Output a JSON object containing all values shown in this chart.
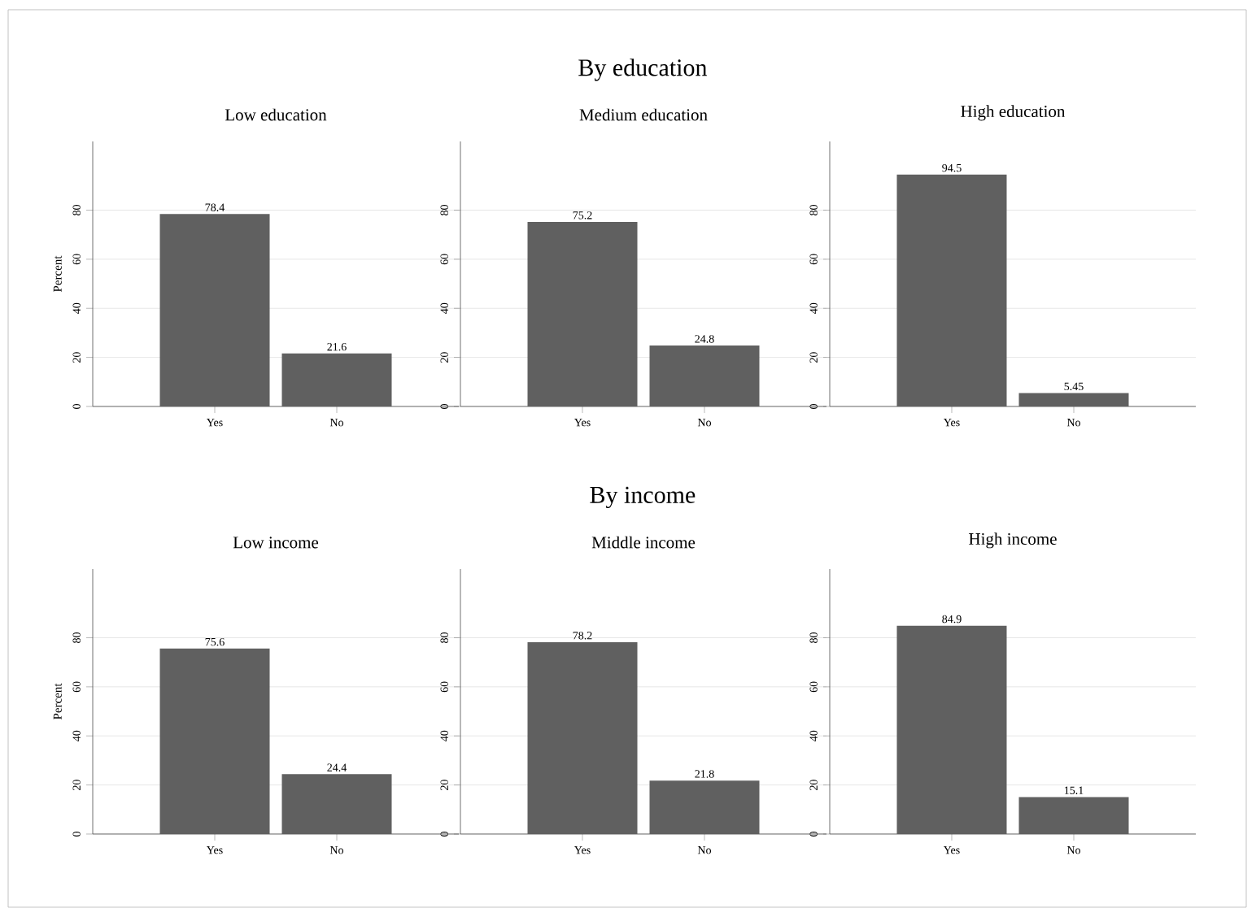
{
  "chart_data": [
    {
      "type": "bar",
      "title": "Low education",
      "ylabel": "Percent",
      "categories": [
        "Yes",
        "No"
      ],
      "values": [
        78.4,
        21.6
      ],
      "color": "#606060",
      "ylim": [
        0,
        108
      ],
      "yticks": [
        0,
        20,
        40,
        60,
        80
      ],
      "grid": "y",
      "data_labels": true,
      "annotations": [
        "By education"
      ]
    },
    {
      "type": "bar",
      "title": "Medium education",
      "categories": [
        "Yes",
        "No"
      ],
      "values": [
        75.2,
        24.8
      ],
      "color": "#606060",
      "ylim": [
        0,
        108
      ],
      "yticks": [
        0,
        20,
        40,
        60,
        80
      ],
      "grid": "y",
      "data_labels": true
    },
    {
      "type": "bar",
      "title": "High education",
      "categories": [
        "Yes",
        "No"
      ],
      "values": [
        94.5,
        5.45
      ],
      "color": "#606060",
      "ylim": [
        0,
        108
      ],
      "yticks": [
        0,
        20,
        40,
        60,
        80
      ],
      "grid": "y",
      "data_labels": true
    },
    {
      "type": "bar",
      "title": "Low income",
      "ylabel": "Percent",
      "categories": [
        "Yes",
        "No"
      ],
      "values": [
        75.6,
        24.4
      ],
      "color": "#606060",
      "ylim": [
        0,
        108
      ],
      "yticks": [
        0,
        20,
        40,
        60,
        80
      ],
      "grid": "y",
      "data_labels": true,
      "annotations": [
        "By income"
      ]
    },
    {
      "type": "bar",
      "title": "Middle income",
      "categories": [
        "Yes",
        "No"
      ],
      "values": [
        78.2,
        21.8
      ],
      "color": "#606060",
      "ylim": [
        0,
        108
      ],
      "yticks": [
        0,
        20,
        40,
        60,
        80
      ],
      "grid": "y",
      "data_labels": true
    },
    {
      "type": "bar",
      "title": "High income",
      "categories": [
        "Yes",
        "No"
      ],
      "values": [
        84.9,
        15.1
      ],
      "color": "#606060",
      "ylim": [
        0,
        108
      ],
      "yticks": [
        0,
        20,
        40,
        60,
        80
      ],
      "grid": "y",
      "data_labels": true
    }
  ]
}
